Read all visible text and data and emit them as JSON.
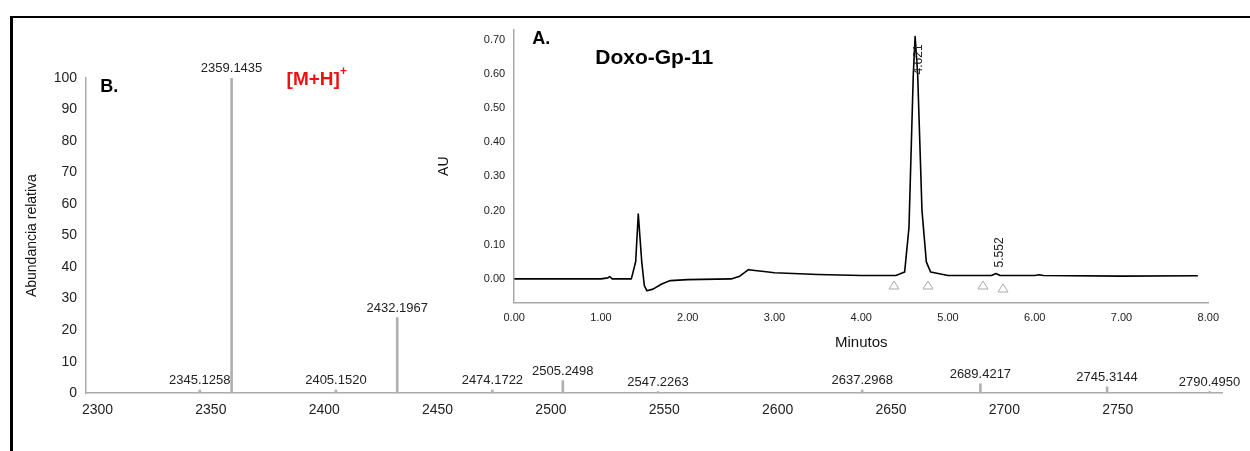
{
  "chart_data": [
    {
      "type": "bar",
      "x": [
        2345.1258,
        2359.1435,
        2405.152,
        2432.1967,
        2474.1722,
        2505.2498,
        2547.2263,
        2637.2968,
        2689.4217,
        2745.3144,
        2790.495
      ],
      "values": [
        1,
        100,
        1,
        24,
        1,
        4,
        0.5,
        1,
        3,
        2,
        0.5
      ],
      "color": "#b0b0b0",
      "xlim": [
        2295,
        2796
      ],
      "xticks": [
        2300,
        2350,
        2400,
        2450,
        2500,
        2550,
        2600,
        2650,
        2700,
        2750
      ],
      "ylim": [
        0,
        100
      ],
      "yticks": [
        0,
        10,
        20,
        30,
        40,
        50,
        60,
        70,
        80,
        90,
        100
      ],
      "ylabel": "Abundancia relativa",
      "grid": false,
      "annotations": [
        "B.",
        {
          "text": "[M+H]$^{+}$",
          "x": 2359.1435,
          "y": 100
        },
        {
          "text": "2345.1258",
          "x": 2345.1258,
          "y": 1
        },
        {
          "text": "2359.1435",
          "x": 2359.1435,
          "y": 100
        },
        {
          "text": "2405.1520",
          "x": 2405.152,
          "y": 1
        },
        {
          "text": "2432.1967",
          "x": 2432.1967,
          "y": 24
        },
        {
          "text": "2474.1722",
          "x": 2474.1722,
          "y": 1
        },
        {
          "text": "2505.2498",
          "x": 2505.2498,
          "y": 4
        },
        {
          "text": "2547.2263",
          "x": 2547.2263,
          "y": 0.5
        },
        {
          "text": "2637.2968",
          "x": 2637.2968,
          "y": 1
        },
        {
          "text": "2689.4217",
          "x": 2689.4217,
          "y": 3
        },
        {
          "text": "2745.3144",
          "x": 2745.3144,
          "y": 2
        },
        {
          "text": "2790.4950",
          "x": 2790.495,
          "y": 0.5
        }
      ]
    },
    {
      "type": "line",
      "title": "Doxo-Gp-11",
      "xlabel": "Minutos",
      "ylabel": "AU",
      "color": "#000000",
      "marker": "none",
      "grid": false,
      "x": [
        0,
        0.5,
        1.0,
        1.08,
        1.1,
        1.13,
        1.35,
        1.4,
        1.43,
        1.47,
        1.5,
        1.53,
        1.6,
        1.7,
        1.8,
        2.0,
        2.5,
        2.6,
        2.7,
        2.8,
        3.0,
        3.5,
        4.0,
        4.4,
        4.5,
        4.55,
        4.6,
        4.621,
        4.65,
        4.7,
        4.75,
        4.8,
        5.0,
        5.5,
        5.552,
        5.6,
        6.0,
        6.05,
        6.1,
        7.0,
        7.88
      ],
      "values": [
        0,
        0,
        0,
        0.003,
        0.007,
        0,
        0,
        0.05,
        0.19,
        0.05,
        -0.02,
        -0.035,
        -0.03,
        -0.015,
        -0.005,
        -0.002,
        0,
        0.008,
        0.027,
        0.024,
        0.018,
        0.013,
        0.01,
        0.01,
        0.02,
        0.15,
        0.6,
        0.71,
        0.6,
        0.2,
        0.05,
        0.02,
        0.01,
        0.01,
        0.016,
        0.01,
        0.01,
        0.012,
        0.01,
        0.008,
        0.009
      ],
      "xlim": [
        0,
        8
      ],
      "xticks": [
        {
          "value": 0,
          "label": "0.00"
        },
        {
          "value": 1,
          "label": "1.00"
        },
        {
          "value": 2,
          "label": "2.00"
        },
        {
          "value": 3,
          "label": "3.00"
        },
        {
          "value": 4,
          "label": "4.00"
        },
        {
          "value": 5,
          "label": "5.00"
        },
        {
          "value": 6,
          "label": "6.00"
        },
        {
          "value": 7,
          "label": "7.00"
        },
        {
          "value": 8,
          "label": "8.00"
        }
      ],
      "ylim": [
        -0.07,
        0.73
      ],
      "yticks": [
        {
          "value": 0,
          "label": "0.00"
        },
        {
          "value": 0.1,
          "label": "0.10"
        },
        {
          "value": 0.2,
          "label": "0.20"
        },
        {
          "value": 0.3,
          "label": "0.30"
        },
        {
          "value": 0.4,
          "label": "0.40"
        },
        {
          "value": 0.5,
          "label": "0.50"
        },
        {
          "value": 0.6,
          "label": "0.60"
        },
        {
          "value": 0.7,
          "label": "0.70"
        }
      ],
      "annotations": [
        "A.",
        {
          "text": "4.621",
          "x": 4.621,
          "y": 0.71
        },
        {
          "text": "5.552",
          "x": 5.552,
          "y": 0.016
        }
      ]
    }
  ]
}
